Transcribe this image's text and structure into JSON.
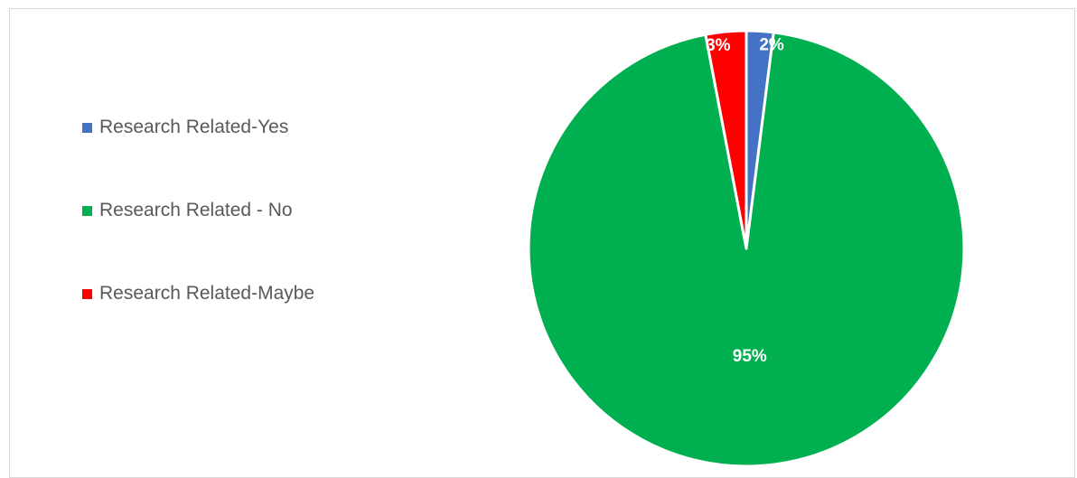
{
  "chart_data": {
    "type": "pie",
    "title": "",
    "categories": [
      "Research Related-Yes",
      "Research Related - No",
      "Research Related-Maybe"
    ],
    "values": [
      2,
      95,
      3
    ],
    "data_labels": [
      "2%",
      "95%",
      "3%"
    ],
    "colors": [
      "#4472c4",
      "#00b050",
      "#ff0000"
    ],
    "legend_position": "left",
    "label_color": "#ffffff"
  }
}
